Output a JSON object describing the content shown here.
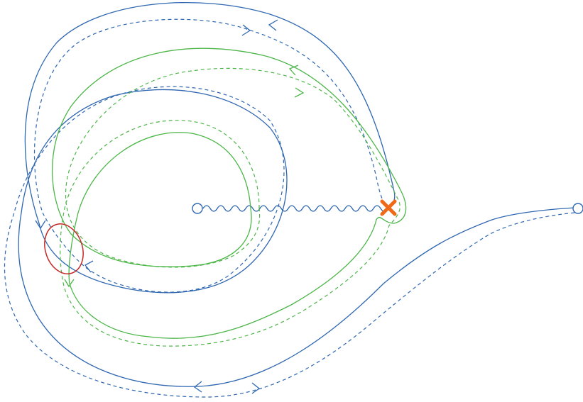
{
  "diagram": {
    "type": "contour-diagram",
    "colors": {
      "blue": "#2f67b1",
      "green": "#4cb648",
      "red": "#c42a28",
      "orange": "#ef6a18"
    },
    "elements": {
      "branch_point_marker": "open-circle",
      "branch_cut": "wavy-line",
      "singularity_marker": "cross",
      "highlight_region": "ellipse",
      "endpoint_marker": "open-circle"
    },
    "contours": [
      {
        "name": "",
        "color": "blue",
        "style": "solid"
      },
      {
        "name": "",
        "color": "blue",
        "style": "dashed"
      },
      {
        "name": "",
        "color": "green",
        "style": "solid"
      },
      {
        "name": "",
        "color": "green",
        "style": "dashed"
      }
    ]
  }
}
